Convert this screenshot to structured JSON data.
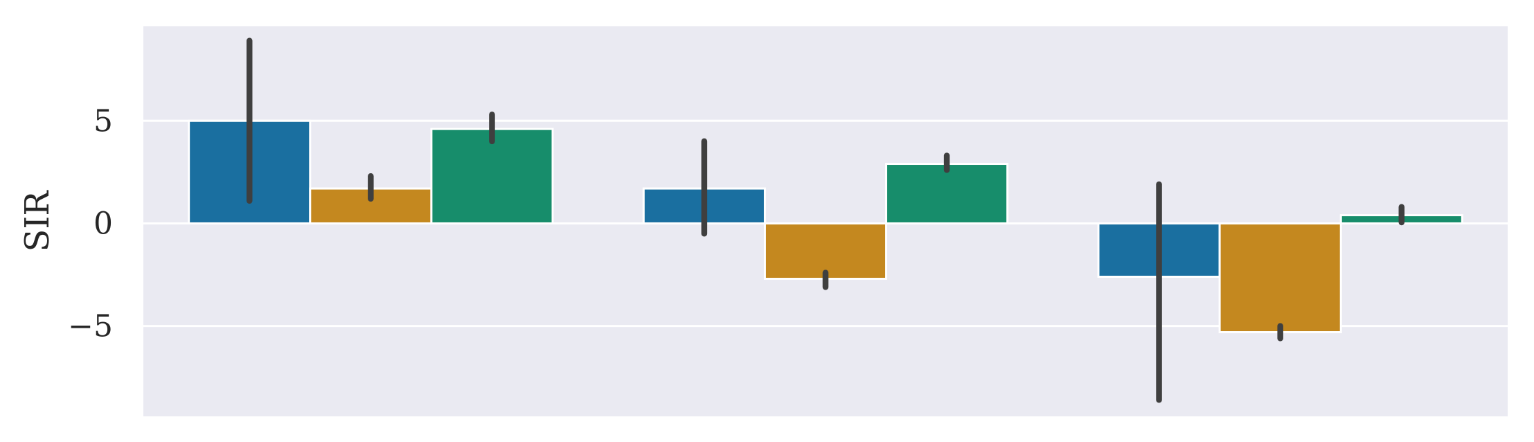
{
  "chart_data": {
    "type": "bar",
    "title": "",
    "xlabel": "",
    "ylabel": "SIR",
    "ylim": [
      -9.4,
      9.6
    ],
    "yticks": [
      -5,
      0,
      5
    ],
    "ytick_labels": [
      "−5",
      "0",
      "5"
    ],
    "grid": true,
    "legend": "none",
    "categories": [
      "",
      "",
      ""
    ],
    "series": [
      {
        "color": "#1a6fa0",
        "values": [
          5.0,
          1.7,
          -2.6
        ],
        "err_low": [
          1.1,
          -0.5,
          -8.6
        ],
        "err_high": [
          8.9,
          4.0,
          1.9
        ]
      },
      {
        "color": "#c4881f",
        "values": [
          1.7,
          -2.7,
          -5.3
        ],
        "err_low": [
          1.2,
          -3.1,
          -5.6
        ],
        "err_high": [
          2.3,
          -2.4,
          -5.0
        ]
      },
      {
        "color": "#178d6b",
        "values": [
          4.6,
          2.9,
          0.4
        ],
        "err_low": [
          4.0,
          2.6,
          0.05
        ],
        "err_high": [
          5.3,
          3.3,
          0.8
        ]
      }
    ],
    "colors": {
      "background": "#eaeaf2",
      "grid": "#ffffff",
      "errorbar": "#3f3f3f"
    }
  }
}
